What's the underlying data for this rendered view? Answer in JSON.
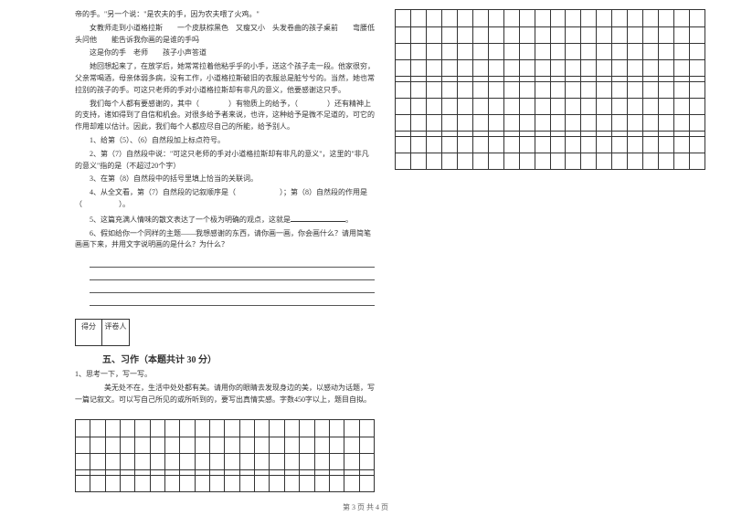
{
  "leftCol": {
    "passages": [
      "帝的手。\"另一个说：\"是农夫的手，因为农夫喂了火鸡。\"",
      "女教师走到小道格拉斯　　一个皮肤棕黑色　又瘦又小　头发卷曲的孩子桌前　　弯腰低头问他　　能告诉我你画的是谁的手吗",
      "这是你的手　老师　　孩子小声答道",
      "她回想起来了，在放学后，她常常拉着他粘乎乎的小手，送这个孩子走一段。他家很穷，父亲常喝酒，母亲体弱多病，没有工作，小道格拉斯破旧的衣服总是脏兮兮的。当然，她也常拉别的孩子的手。可这只老师的手对小道格拉斯却有非凡的意义，他要感谢这只手。",
      "我们每个人都有要感谢的，其中（　　　　）有物质上的给予，（　　　　）还有精神上的支持，诸如得到了自信和机会。对很多给予者来说，也许，这种给予是微不足道的，可它的作用却难以估计。因此，我们每个人都应尽自己的所能，给予别人。"
    ],
    "questions": [
      "1、给第（5）、（6）自然段加上标点符号。",
      "2、第（7）自然段中说：\"可这只老师的手对小道格拉斯却有非凡的意义\"，这里的\"非凡的意义\"指的是（不超过20个字）",
      "3、在第（8）自然段中的括号里填上恰当的关联词。",
      "4、从全文看，第（7）自然段的记叙顺序是（　　　　　　）；第（8）自然段的作用是（　　　　　）。",
      "5、这篇充满人情味的散文表达了一个极为明确的观点，这就是",
      "6、假如给你一个同样的主题——我想感谢的东西，请你画一画，你会画什么？请用简笔画画下来，并用文字说明画的是什么？为什么？"
    ],
    "scoreLabels": {
      "score": "得分",
      "reviewer": "评卷人"
    },
    "section5": {
      "title": "五、习作（本题共计 30 分）",
      "prompt": "1、思考一下，写一写。",
      "body": "美无处不在，生活中处处都有美。请用你的眼睛去发现身边的美，以感动为话题，写一篇记叙文。可以写自己所见的或所听到的，要写出真情实感。字数450字以上，题目自拟。"
    }
  },
  "grids": {
    "cols": 20,
    "topRight": {
      "fullRows": 4,
      "spacerAfter": true,
      "extraFullRows": 3,
      "spacer2": true,
      "bottomRows": 2
    },
    "bottomLeft": {
      "fullRows": 3,
      "spacer": true,
      "lastRows": 1
    }
  },
  "footer": "第 3 页 共 4 页",
  "style": {
    "pageWidth": 800,
    "pageHeight": 565,
    "bodyFont": "SimSun",
    "bodyFontSize": 8,
    "textColor": "#333333",
    "bgColor": "#ffffff",
    "gridBorder": "#333333",
    "lineColor": "#555555",
    "gridCellHeight": 18,
    "gridSpacerHeight": 6
  }
}
